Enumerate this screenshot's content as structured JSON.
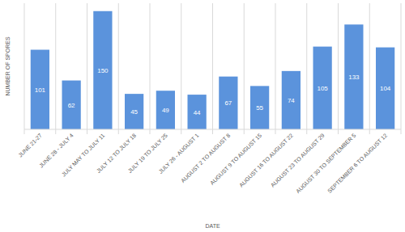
{
  "chart_data": {
    "type": "bar",
    "x_label": "DATE",
    "y_label": "NUMBER OF SPORES",
    "categories": [
      "JUNE 21-27",
      "JUNE 28 - JULY 4",
      "JULY MAY TO JULY 11",
      "JULY 12 TO JULY 18",
      "JULY 19 TO JULY 25",
      "JULY 26 - AUGUST 1",
      "AUGUST 2 TO AUGUST 8",
      "AUGUST 9 TO AUGUST 15",
      "AUGUST 16 TO AUGUST 22",
      "AUGUST 23 TO AUGUST 29",
      "AUGUST 30 TO SEPTEMBER 5",
      "SEPTEMBER 6 TO AUGUST 12"
    ],
    "values": [
      101,
      62,
      150,
      45,
      49,
      44,
      67,
      55,
      74,
      105,
      133,
      104
    ],
    "color": "#5b93dc",
    "ylim": [
      0,
      160
    ],
    "grid": true,
    "data_labels": true,
    "tick_labels": "x"
  }
}
